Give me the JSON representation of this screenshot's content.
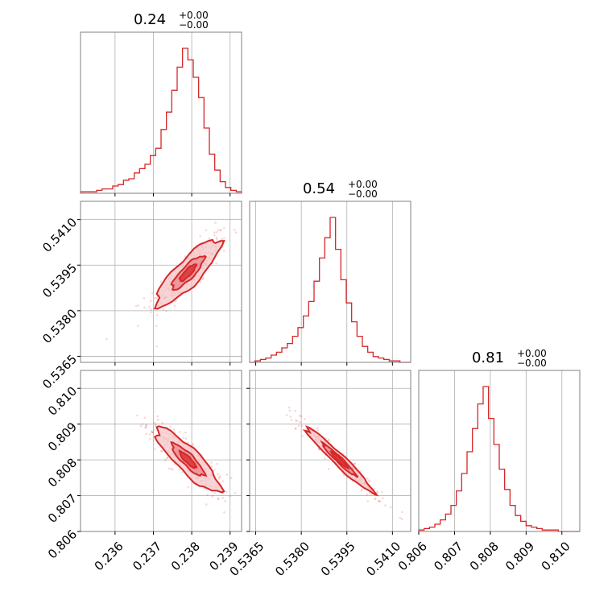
{
  "colors": {
    "accent": "#d62728",
    "accent_light": "#f4c2c4",
    "accent_mid": "#e8858a"
  },
  "chart_data": {
    "type": "corner",
    "parameters": [
      {
        "title": "0.24",
        "upper_err": "+0.00",
        "lower_err": "−0.00",
        "range": [
          0.2351,
          0.2393
        ],
        "ticks": [
          0.236,
          0.237,
          0.238,
          0.239
        ],
        "tick_labels": [
          "0.236",
          "0.237",
          "0.238",
          "0.239"
        ],
        "mean": 0.2379,
        "sd": 0.00042
      },
      {
        "title": "0.54",
        "upper_err": "+0.00",
        "lower_err": "−0.00",
        "range": [
          0.5363,
          0.5416
        ],
        "ticks": [
          0.5365,
          0.538,
          0.5395,
          0.541
        ],
        "tick_labels": [
          "0.5365",
          "0.5380",
          "0.5395",
          "0.5410"
        ],
        "mean": 0.53925,
        "sd": 0.00055
      },
      {
        "title": "0.81",
        "upper_err": "+0.00",
        "lower_err": "−0.00",
        "range": [
          0.806,
          0.8105
        ],
        "ticks": [
          0.806,
          0.807,
          0.808,
          0.809,
          0.81
        ],
        "tick_labels": [
          "0.806",
          "0.807",
          "0.808",
          "0.809",
          "0.810"
        ],
        "mean": 0.808,
        "sd": 0.00045
      }
    ],
    "histograms": [
      {
        "parameter": 0,
        "bin_edges": [
          0.2351,
          0.23524,
          0.23538,
          0.23552,
          0.23566,
          0.2358,
          0.23594,
          0.23608,
          0.23622,
          0.23636,
          0.2365,
          0.23664,
          0.23678,
          0.23692,
          0.23706,
          0.2372,
          0.23734,
          0.23748,
          0.23762,
          0.23776,
          0.2379,
          0.23804,
          0.23818,
          0.23832,
          0.23846,
          0.2386,
          0.23874,
          0.23888,
          0.23902,
          0.23916,
          0.2393
        ],
        "counts": [
          1,
          1,
          1,
          2,
          3,
          3,
          5,
          6,
          9,
          10,
          14,
          17,
          20,
          26,
          31,
          44,
          56,
          71,
          87,
          100,
          92,
          80,
          66,
          45,
          27,
          16,
          8,
          4,
          2,
          1
        ]
      },
      {
        "parameter": 1,
        "bin_edges": [
          0.5363,
          0.536477,
          0.536653,
          0.53683,
          0.537007,
          0.537183,
          0.53736,
          0.537537,
          0.537713,
          0.53789,
          0.538067,
          0.538243,
          0.53842,
          0.538597,
          0.538773,
          0.53895,
          0.539127,
          0.539303,
          0.53948,
          0.539657,
          0.539833,
          0.54001,
          0.540187,
          0.540363,
          0.54054,
          0.540717,
          0.540893,
          0.54107,
          0.541247,
          0.541423,
          0.5416
        ],
        "counts": [
          0,
          1,
          2,
          3,
          5,
          7,
          10,
          13,
          18,
          24,
          32,
          42,
          56,
          72,
          86,
          100,
          78,
          57,
          41,
          28,
          18,
          11,
          7,
          4,
          3,
          2,
          1,
          1,
          0,
          0
        ]
      },
      {
        "parameter": 2,
        "bin_edges": [
          0.806,
          0.80615,
          0.8063,
          0.80645,
          0.8066,
          0.80675,
          0.8069,
          0.80705,
          0.8072,
          0.80735,
          0.8075,
          0.80765,
          0.8078,
          0.80795,
          0.8081,
          0.80825,
          0.8084,
          0.80855,
          0.8087,
          0.80885,
          0.809,
          0.80915,
          0.8093,
          0.80945,
          0.8096,
          0.80975,
          0.8099,
          0.81005,
          0.8102,
          0.81035,
          0.8105
        ],
        "counts": [
          1,
          2,
          3,
          5,
          8,
          12,
          18,
          28,
          40,
          55,
          71,
          88,
          100,
          78,
          60,
          43,
          29,
          18,
          11,
          7,
          4,
          3,
          2,
          1,
          1,
          1,
          0,
          0,
          0,
          0
        ]
      }
    ],
    "pairs": [
      {
        "x": 0,
        "y": 1,
        "rho": 0.85
      },
      {
        "x": 0,
        "y": 2,
        "rho": -0.87
      },
      {
        "x": 1,
        "y": 2,
        "rho": -0.97
      }
    ],
    "grid": true
  }
}
